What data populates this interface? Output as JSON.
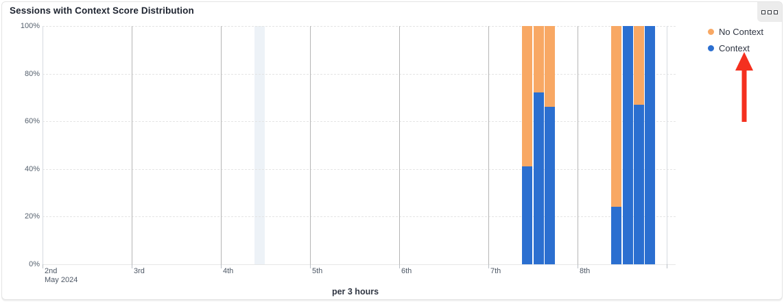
{
  "card": {
    "title": "Sessions with Context Score Distribution",
    "menu_button": {
      "icon": "grid-squares-menu-icon"
    }
  },
  "chart_data": {
    "type": "bar",
    "stacked": true,
    "stack_unit": "percent",
    "title": "Sessions with Context Score Distribution",
    "xlabel": "per 3 hours",
    "ylabel": "",
    "ylim": [
      0,
      100
    ],
    "grid": true,
    "legend_position": "right",
    "y_axis": {
      "tick_labels": [
        "0%",
        "20%",
        "40%",
        "60%",
        "80%",
        "100%"
      ],
      "tick_values": [
        0,
        20,
        40,
        60,
        80,
        100
      ]
    },
    "x_axis": {
      "day_labels": [
        "2nd",
        "3rd",
        "4th",
        "5th",
        "6th",
        "7th",
        "8th"
      ],
      "first_label_subtext": "May 2024",
      "slots_per_day": 8
    },
    "legend": [
      {
        "label": "No Context",
        "color": "#f8a864"
      },
      {
        "label": "Context",
        "color": "#2b6fd0"
      }
    ],
    "series": [
      {
        "name": "Context",
        "color": "#2b6fd0",
        "values": [
          41,
          72,
          66,
          24,
          100,
          67,
          100
        ]
      },
      {
        "name": "No Context",
        "color": "#f8a864",
        "values": [
          59,
          28,
          34,
          76,
          0,
          33,
          0
        ]
      }
    ],
    "bars": [
      {
        "day": "7th",
        "day_index": 5,
        "slot_of_day": 3,
        "context_pct": 41,
        "no_context_pct": 59
      },
      {
        "day": "7th",
        "day_index": 5,
        "slot_of_day": 4,
        "context_pct": 72,
        "no_context_pct": 28
      },
      {
        "day": "7th",
        "day_index": 5,
        "slot_of_day": 5,
        "context_pct": 66,
        "no_context_pct": 34
      },
      {
        "day": "8th",
        "day_index": 6,
        "slot_of_day": 3,
        "context_pct": 24,
        "no_context_pct": 76
      },
      {
        "day": "8th",
        "day_index": 6,
        "slot_of_day": 4,
        "context_pct": 100,
        "no_context_pct": 0
      },
      {
        "day": "8th",
        "day_index": 6,
        "slot_of_day": 5,
        "context_pct": 67,
        "no_context_pct": 33
      },
      {
        "day": "8th",
        "day_index": 6,
        "slot_of_day": 6,
        "context_pct": 100,
        "no_context_pct": 0
      }
    ],
    "highlight_band": {
      "day_index": 2,
      "slot_of_day": 3,
      "color": "#edf2f7"
    },
    "colors": {
      "context": "#2b6fd0",
      "no_context": "#f8a864",
      "day_gridline": "#b4b4b4",
      "edge_gridline": "#d5dae0",
      "dashed_gridline": "#e4e4e4"
    }
  },
  "annotations": {
    "arrow": {
      "points_to": "Context legend item",
      "direction": "up",
      "color": "#f4301f"
    }
  }
}
